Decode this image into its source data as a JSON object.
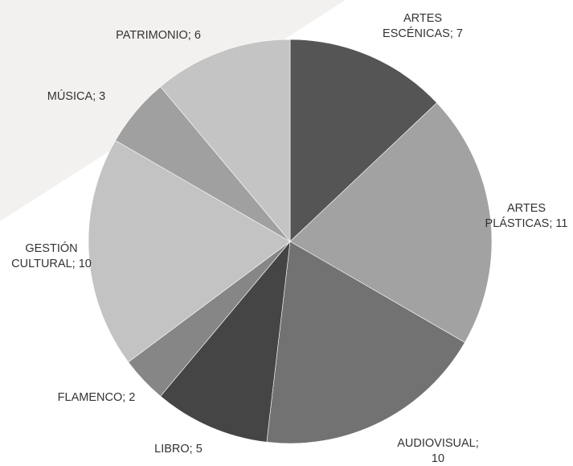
{
  "chart_data": {
    "type": "pie",
    "title": "",
    "label_separator": "; ",
    "slices": [
      {
        "label": "ARTES ESCÉNICAS",
        "value": 7,
        "color": "#555555"
      },
      {
        "label": "ARTES PLÁSTICAS",
        "value": 11,
        "color": "#a2a2a2"
      },
      {
        "label": "AUDIOVISUAL",
        "value": 10,
        "color": "#727272"
      },
      {
        "label": "LIBRO",
        "value": 5,
        "color": "#454545"
      },
      {
        "label": "FLAMENCO",
        "value": 2,
        "color": "#868686"
      },
      {
        "label": "GESTIÓN CULTURAL",
        "value": 10,
        "color": "#c3c3c3"
      },
      {
        "label": "MÚSICA",
        "value": 3,
        "color": "#a0a0a0"
      },
      {
        "label": "PATRIMONIO",
        "value": 6,
        "color": "#c4c4c4"
      }
    ],
    "start_angle_deg": 0,
    "direction": "clockwise",
    "legend": "none",
    "data_labels": "outside"
  },
  "background": {
    "page_color": "#ffffff",
    "band_color": "#f3f1ef"
  }
}
